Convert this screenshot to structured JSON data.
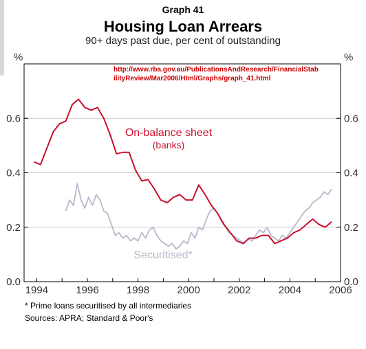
{
  "header": {
    "graph_label": "Graph 41",
    "title": "Housing Loan Arrears",
    "subtitle": "90+ days past due, per cent of outstanding",
    "url": "http://www.rba.gov.au/PublicationsAndResearch/FinancialStabilityReview/Mar2006/Html/Graphs/graph_41.html"
  },
  "footer": {
    "footnote": "*  Prime loans securitised by all intermediaries",
    "sources": "Sources: APRA; Standard & Poor's"
  },
  "colors": {
    "on_balance": "#c8102e",
    "securitised": "#b8b8cc",
    "grid": "#c8c8c8"
  },
  "chart_data": {
    "type": "line",
    "title": "Housing Loan Arrears",
    "subtitle": "90+ days past due, per cent of outstanding",
    "ylabel_left": "%",
    "ylabel_right": "%",
    "xlim": [
      1993.5,
      2006
    ],
    "ylim": [
      0,
      0.8
    ],
    "x_ticks": [
      1994,
      1996,
      1998,
      2000,
      2002,
      2004,
      2006
    ],
    "x_tick_labels": [
      "1994",
      "1996",
      "1998",
      "2000",
      "2002",
      "2004",
      "2006"
    ],
    "y_ticks": [
      0.0,
      0.2,
      0.4,
      0.6
    ],
    "y_tick_labels": [
      "0.0",
      "0.2",
      "0.4",
      "0.6"
    ],
    "grid": "horizontal",
    "series": [
      {
        "name": "On-balance sheet",
        "name_line2": "(banks)",
        "x": [
          1993.9,
          1994.15,
          1994.4,
          1994.65,
          1994.9,
          1995.15,
          1995.4,
          1995.65,
          1995.9,
          1996.15,
          1996.4,
          1996.65,
          1996.9,
          1997.15,
          1997.4,
          1997.65,
          1997.9,
          1998.15,
          1998.4,
          1998.65,
          1998.9,
          1999.15,
          1999.4,
          1999.65,
          1999.9,
          2000.15,
          2000.4,
          2000.65,
          2000.9,
          2001.15,
          2001.4,
          2001.65,
          2001.9,
          2002.15,
          2002.4,
          2002.65,
          2002.9,
          2003.15,
          2003.4,
          2003.65,
          2003.9,
          2004.15,
          2004.4,
          2004.65,
          2004.9,
          2005.15,
          2005.4,
          2005.65
        ],
        "y": [
          0.44,
          0.43,
          0.49,
          0.55,
          0.58,
          0.59,
          0.65,
          0.67,
          0.64,
          0.63,
          0.64,
          0.6,
          0.54,
          0.47,
          0.475,
          0.475,
          0.41,
          0.37,
          0.375,
          0.34,
          0.3,
          0.29,
          0.31,
          0.32,
          0.3,
          0.3,
          0.355,
          0.32,
          0.28,
          0.25,
          0.21,
          0.18,
          0.15,
          0.14,
          0.16,
          0.16,
          0.17,
          0.17,
          0.14,
          0.15,
          0.16,
          0.18,
          0.19,
          0.21,
          0.23,
          0.21,
          0.2,
          0.22
        ]
      },
      {
        "name": "Securitised*",
        "x": [
          1995.15,
          1995.3,
          1995.45,
          1995.6,
          1995.75,
          1995.9,
          1996.05,
          1996.2,
          1996.35,
          1996.5,
          1996.65,
          1996.8,
          1996.95,
          1997.1,
          1997.25,
          1997.4,
          1997.55,
          1997.7,
          1997.85,
          1998.0,
          1998.15,
          1998.3,
          1998.45,
          1998.6,
          1998.75,
          1998.9,
          1999.05,
          1999.2,
          1999.35,
          1999.5,
          1999.65,
          1999.8,
          1999.95,
          2000.1,
          2000.25,
          2000.4,
          2000.55,
          2000.7,
          2000.85,
          2001.0,
          2001.15,
          2001.3,
          2001.45,
          2001.6,
          2001.75,
          2001.9,
          2002.05,
          2002.2,
          2002.35,
          2002.5,
          2002.65,
          2002.8,
          2002.95,
          2003.1,
          2003.25,
          2003.4,
          2003.55,
          2003.7,
          2003.85,
          2004.0,
          2004.15,
          2004.3,
          2004.45,
          2004.6,
          2004.75,
          2004.9,
          2005.05,
          2005.2,
          2005.35,
          2005.5,
          2005.65
        ],
        "y": [
          0.26,
          0.3,
          0.28,
          0.36,
          0.3,
          0.27,
          0.31,
          0.28,
          0.32,
          0.3,
          0.26,
          0.25,
          0.21,
          0.17,
          0.18,
          0.16,
          0.17,
          0.15,
          0.16,
          0.15,
          0.18,
          0.16,
          0.19,
          0.2,
          0.17,
          0.15,
          0.14,
          0.13,
          0.14,
          0.12,
          0.13,
          0.15,
          0.14,
          0.18,
          0.16,
          0.2,
          0.19,
          0.23,
          0.26,
          0.27,
          0.25,
          0.22,
          0.2,
          0.18,
          0.17,
          0.16,
          0.15,
          0.14,
          0.16,
          0.15,
          0.17,
          0.19,
          0.18,
          0.2,
          0.17,
          0.16,
          0.15,
          0.17,
          0.16,
          0.18,
          0.2,
          0.22,
          0.24,
          0.26,
          0.27,
          0.29,
          0.3,
          0.31,
          0.33,
          0.32,
          0.34
        ]
      }
    ]
  }
}
